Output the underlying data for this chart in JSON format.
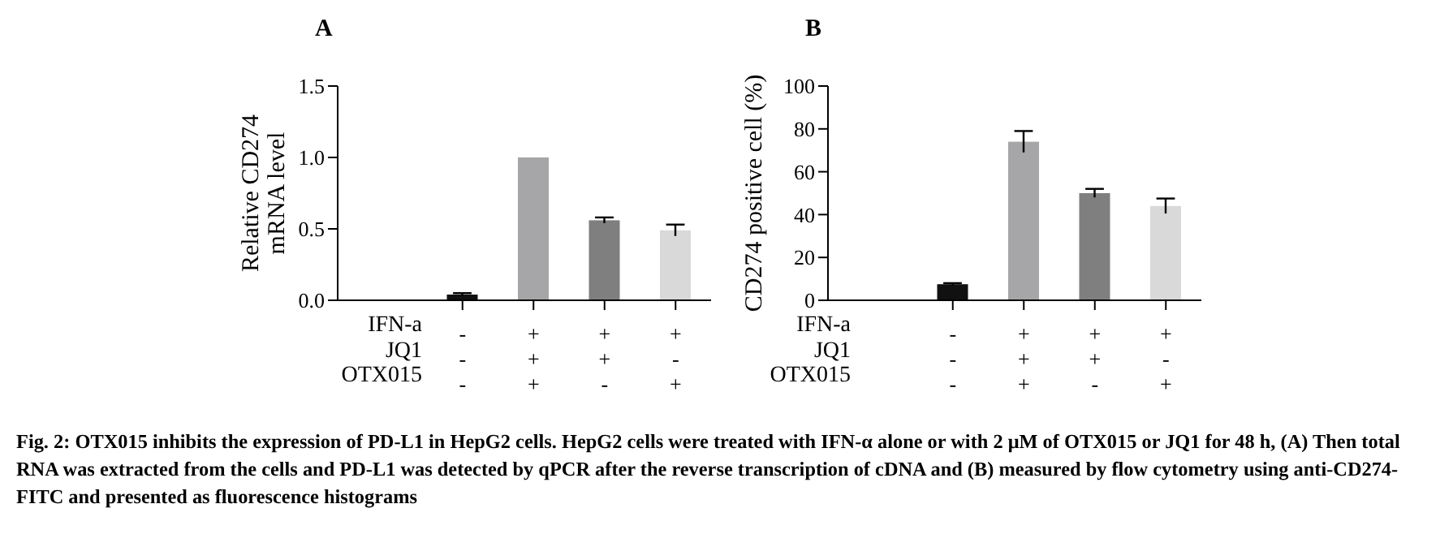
{
  "chart_data": [
    {
      "type": "bar",
      "title": "A",
      "ylabel": "Relative CD274 mRNA level",
      "categories": [
        "-\n-\n-",
        "+\n+\n+",
        "+\n+\n-",
        "+\n-\n+"
      ],
      "values": [
        0.04,
        1.0,
        0.56,
        0.49
      ],
      "errors": [
        0.01,
        null,
        0.02,
        0.04
      ],
      "colors": [
        "#111111",
        "#a6a6a8",
        "#7f7f7f",
        "#d9d9d9"
      ],
      "ylim": [
        0,
        1.5
      ],
      "yticks": [
        {
          "value": 0,
          "label": "0.0"
        },
        0.5,
        {
          "value": 1,
          "label": "1.0"
        },
        1.5
      ],
      "grid": false,
      "legend": false,
      "annotations": [
        "IFN-a",
        "JQ1",
        "OTX015",
        "Fig. 2: OTX015 inhibits the expression of PD-L1 in HepG2 cells. HepG2 cells were treated with IFN-α alone or with 2 μM of OTX015 or JQ1 for 48 h, (A) Then total RNA was extracted from the cells and PD-L1 was detected by qPCR after the reverse transcription of cDNA and (B) measured by flow cytometry using anti-CD274-FITC and presented as fluorescence histograms"
      ]
    },
    {
      "type": "bar",
      "title": "B",
      "ylabel": "CD274 positive cell (%)",
      "categories": [
        "-\n-\n-",
        "+\n+\n+",
        "+\n+\n-",
        "+\n-\n+"
      ],
      "values": [
        7.5,
        74,
        50,
        44
      ],
      "errors": [
        0.5,
        5,
        2,
        3.5
      ],
      "colors": [
        "#111111",
        "#a6a6a8",
        "#7f7f7f",
        "#d9d9d9"
      ],
      "ylim": [
        0,
        100
      ],
      "yticks": [
        0,
        20,
        40,
        60,
        80,
        100
      ],
      "grid": false,
      "legend": false,
      "annotations": [
        "IFN-a",
        "JQ1",
        "OTX015"
      ]
    }
  ]
}
